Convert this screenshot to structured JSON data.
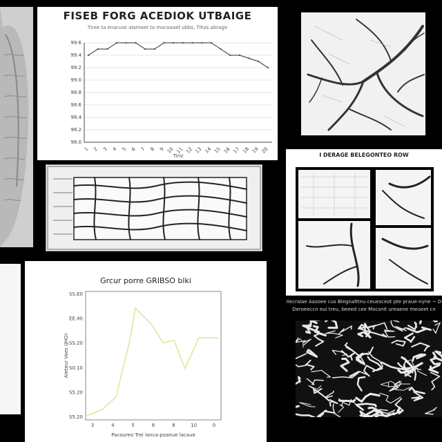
{
  "panels": {
    "top_chart": {
      "title": "FISEB FORG ACEDIOK UTBAIGE",
      "subtitle": "Tiree ta enaruse alamoet ta mocoaaef ubbs, Tihzs abrage",
      "xlabel": "Tiriz"
    },
    "grid_photo": {
      "caption": ""
    },
    "mid_right": {
      "title": "I DERAGE BELEGONTEO ROW"
    },
    "bottom_chart": {
      "title": "Grcur porre GRIBSO blki",
      "ylabel": "Aleteur Vaes (JHO)",
      "xlabel": "Pacoureo Trei lanca-poanue lacaue"
    },
    "caption_right": {
      "line1": "Ilecraiae Aasoee cus Blegnalttnu ceuesceot pte praue-nyne ~ D",
      "line2": "Deroeeccn eui treu, beeed cee Mocsnit ureaene meueet cn"
    }
  },
  "chart_data": [
    {
      "type": "line",
      "title": "FISEB FORG ACEDIOK UTBAIGE",
      "xlabel": "Tiriz",
      "ylabel": "",
      "y_ticks": [
        "99.6",
        "99.4",
        "99.2",
        "99.0",
        "98.8",
        "98.6",
        "98.4",
        "98.2",
        "98.0"
      ],
      "x_ticks": [
        "1",
        "2",
        "3",
        "4",
        "5",
        "6",
        "7",
        "8",
        "9",
        "10",
        "11",
        "12",
        "13",
        "14",
        "15",
        "16",
        "17",
        "18",
        "19",
        "20"
      ],
      "ylim": [
        98.0,
        99.6
      ],
      "grid": true,
      "series": [
        {
          "values": [
            99.4,
            99.5,
            99.5,
            99.6,
            99.6,
            99.6,
            99.5,
            99.5,
            99.6,
            99.6,
            99.6,
            99.6,
            99.6,
            99.6,
            99.5,
            99.4,
            99.4,
            99.35,
            99.3,
            99.2
          ]
        }
      ],
      "color": "#555555"
    },
    {
      "type": "line",
      "title": "Grcur porre GRIBSO blki",
      "xlabel": "Pacoureo Trei lanca-poanue lacaue",
      "ylabel": "Aleteur Vaes (JHO)",
      "y_ticks": [
        "SS.E0",
        "EE.40",
        "SS.20",
        "S0.10",
        "S5.20",
        "S5.20"
      ],
      "x_ticks": [
        "3",
        "4",
        "5",
        "6",
        "8",
        "10",
        "0"
      ],
      "ylim": [
        0,
        10
      ],
      "grid": false,
      "series": [
        {
          "x": [
            0,
            1.2,
            2.2,
            3.2,
            3.6,
            4.8,
            5.6,
            6.4,
            7.2,
            8.2,
            8.9,
            9.6
          ],
          "values": [
            0.3,
            0.8,
            1.8,
            6.2,
            8.7,
            7.4,
            6.0,
            6.2,
            4.0,
            6.4,
            6.4,
            6.4
          ]
        }
      ],
      "color": "#e3e39a"
    }
  ]
}
